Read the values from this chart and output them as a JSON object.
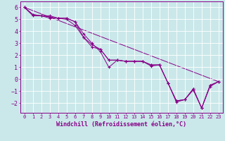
{
  "background_color": "#cae8ea",
  "grid_color": "#ffffff",
  "line_color": "#880088",
  "marker": "+",
  "xlabel": "Windchill (Refroidissement éolien,°C)",
  "xlabel_fontsize": 6,
  "xtick_fontsize": 5,
  "ytick_fontsize": 6,
  "ylim": [
    -2.8,
    6.5
  ],
  "xlim": [
    -0.5,
    23.5
  ],
  "yticks": [
    -2,
    -1,
    0,
    1,
    2,
    3,
    4,
    5,
    6
  ],
  "xticks": [
    0,
    1,
    2,
    3,
    4,
    5,
    6,
    7,
    8,
    9,
    10,
    11,
    12,
    13,
    14,
    15,
    16,
    17,
    18,
    19,
    20,
    21,
    22,
    23
  ],
  "series": [
    [
      6.0,
      5.4,
      5.3,
      5.3,
      5.1,
      5.1,
      4.8,
      3.5,
      2.9,
      2.5,
      1.6,
      1.6,
      1.5,
      1.5,
      1.5,
      1.2,
      1.2,
      -0.3,
      -1.8,
      -1.7,
      -0.8,
      -2.4,
      -0.5,
      -0.2
    ],
    [
      6.0,
      5.3,
      5.3,
      5.2,
      5.1,
      5.1,
      4.8,
      3.8,
      3.0,
      2.3,
      1.0,
      1.6,
      1.5,
      1.5,
      1.5,
      1.1,
      1.2,
      -0.3,
      -1.9,
      -1.7,
      -0.9,
      -2.4,
      -0.6,
      -0.2
    ],
    [
      6.0,
      5.4,
      5.3,
      5.1,
      5.1,
      5.0,
      4.5,
      3.5,
      2.7,
      2.5,
      1.6,
      1.6,
      1.5,
      1.5,
      1.5,
      1.2,
      1.2,
      -0.3,
      -1.8,
      -1.7,
      -0.8,
      -2.4,
      -0.5,
      -0.2
    ]
  ],
  "straight_line": [
    [
      0,
      23
    ],
    [
      6.0,
      -0.2
    ]
  ]
}
